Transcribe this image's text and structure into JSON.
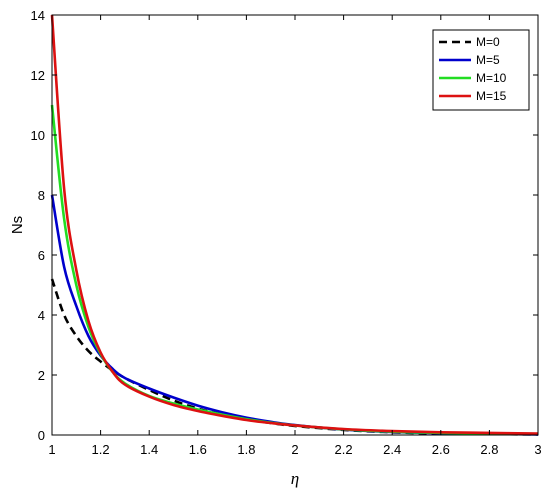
{
  "chart_data": {
    "type": "line",
    "xlabel": "η",
    "ylabel": "Ns",
    "xlim": [
      1,
      3
    ],
    "ylim": [
      0,
      14
    ],
    "xticks": [
      "1",
      "1.2",
      "1.4",
      "1.6",
      "1.8",
      "2",
      "2.2",
      "2.4",
      "2.6",
      "2.8",
      "3"
    ],
    "yticks": [
      "0",
      "2",
      "4",
      "6",
      "8",
      "10",
      "12",
      "14"
    ],
    "grid": false,
    "legend_position": "top-right",
    "x": [
      1.0,
      1.05,
      1.1,
      1.15,
      1.2,
      1.25,
      1.3,
      1.4,
      1.5,
      1.6,
      1.7,
      1.8,
      1.9,
      2.0,
      2.2,
      2.4,
      2.6,
      2.8,
      3.0
    ],
    "series": [
      {
        "name": "M=0",
        "color": "#000000",
        "dash": "dashed",
        "values": [
          5.2,
          4.0,
          3.3,
          2.8,
          2.45,
          2.15,
          1.9,
          1.5,
          1.15,
          0.88,
          0.68,
          0.52,
          0.4,
          0.3,
          0.17,
          0.09,
          0.05,
          0.03,
          0.02
        ]
      },
      {
        "name": "M=5",
        "color": "#0000cc",
        "dash": "solid",
        "values": [
          8.0,
          5.6,
          4.3,
          3.3,
          2.65,
          2.2,
          1.9,
          1.55,
          1.25,
          0.98,
          0.76,
          0.58,
          0.44,
          0.33,
          0.18,
          0.1,
          0.06,
          0.04,
          0.02
        ]
      },
      {
        "name": "M=10",
        "color": "#22dd22",
        "dash": "solid",
        "values": [
          11.0,
          7.2,
          5.0,
          3.6,
          2.7,
          2.1,
          1.72,
          1.3,
          1.05,
          0.85,
          0.68,
          0.53,
          0.41,
          0.32,
          0.19,
          0.11,
          0.07,
          0.05,
          0.04
        ]
      },
      {
        "name": "M=15",
        "color": "#dd1111",
        "dash": "solid",
        "values": [
          14.0,
          8.2,
          5.5,
          3.8,
          2.75,
          2.1,
          1.68,
          1.28,
          1.0,
          0.8,
          0.64,
          0.5,
          0.4,
          0.32,
          0.2,
          0.13,
          0.09,
          0.07,
          0.05
        ]
      }
    ]
  }
}
